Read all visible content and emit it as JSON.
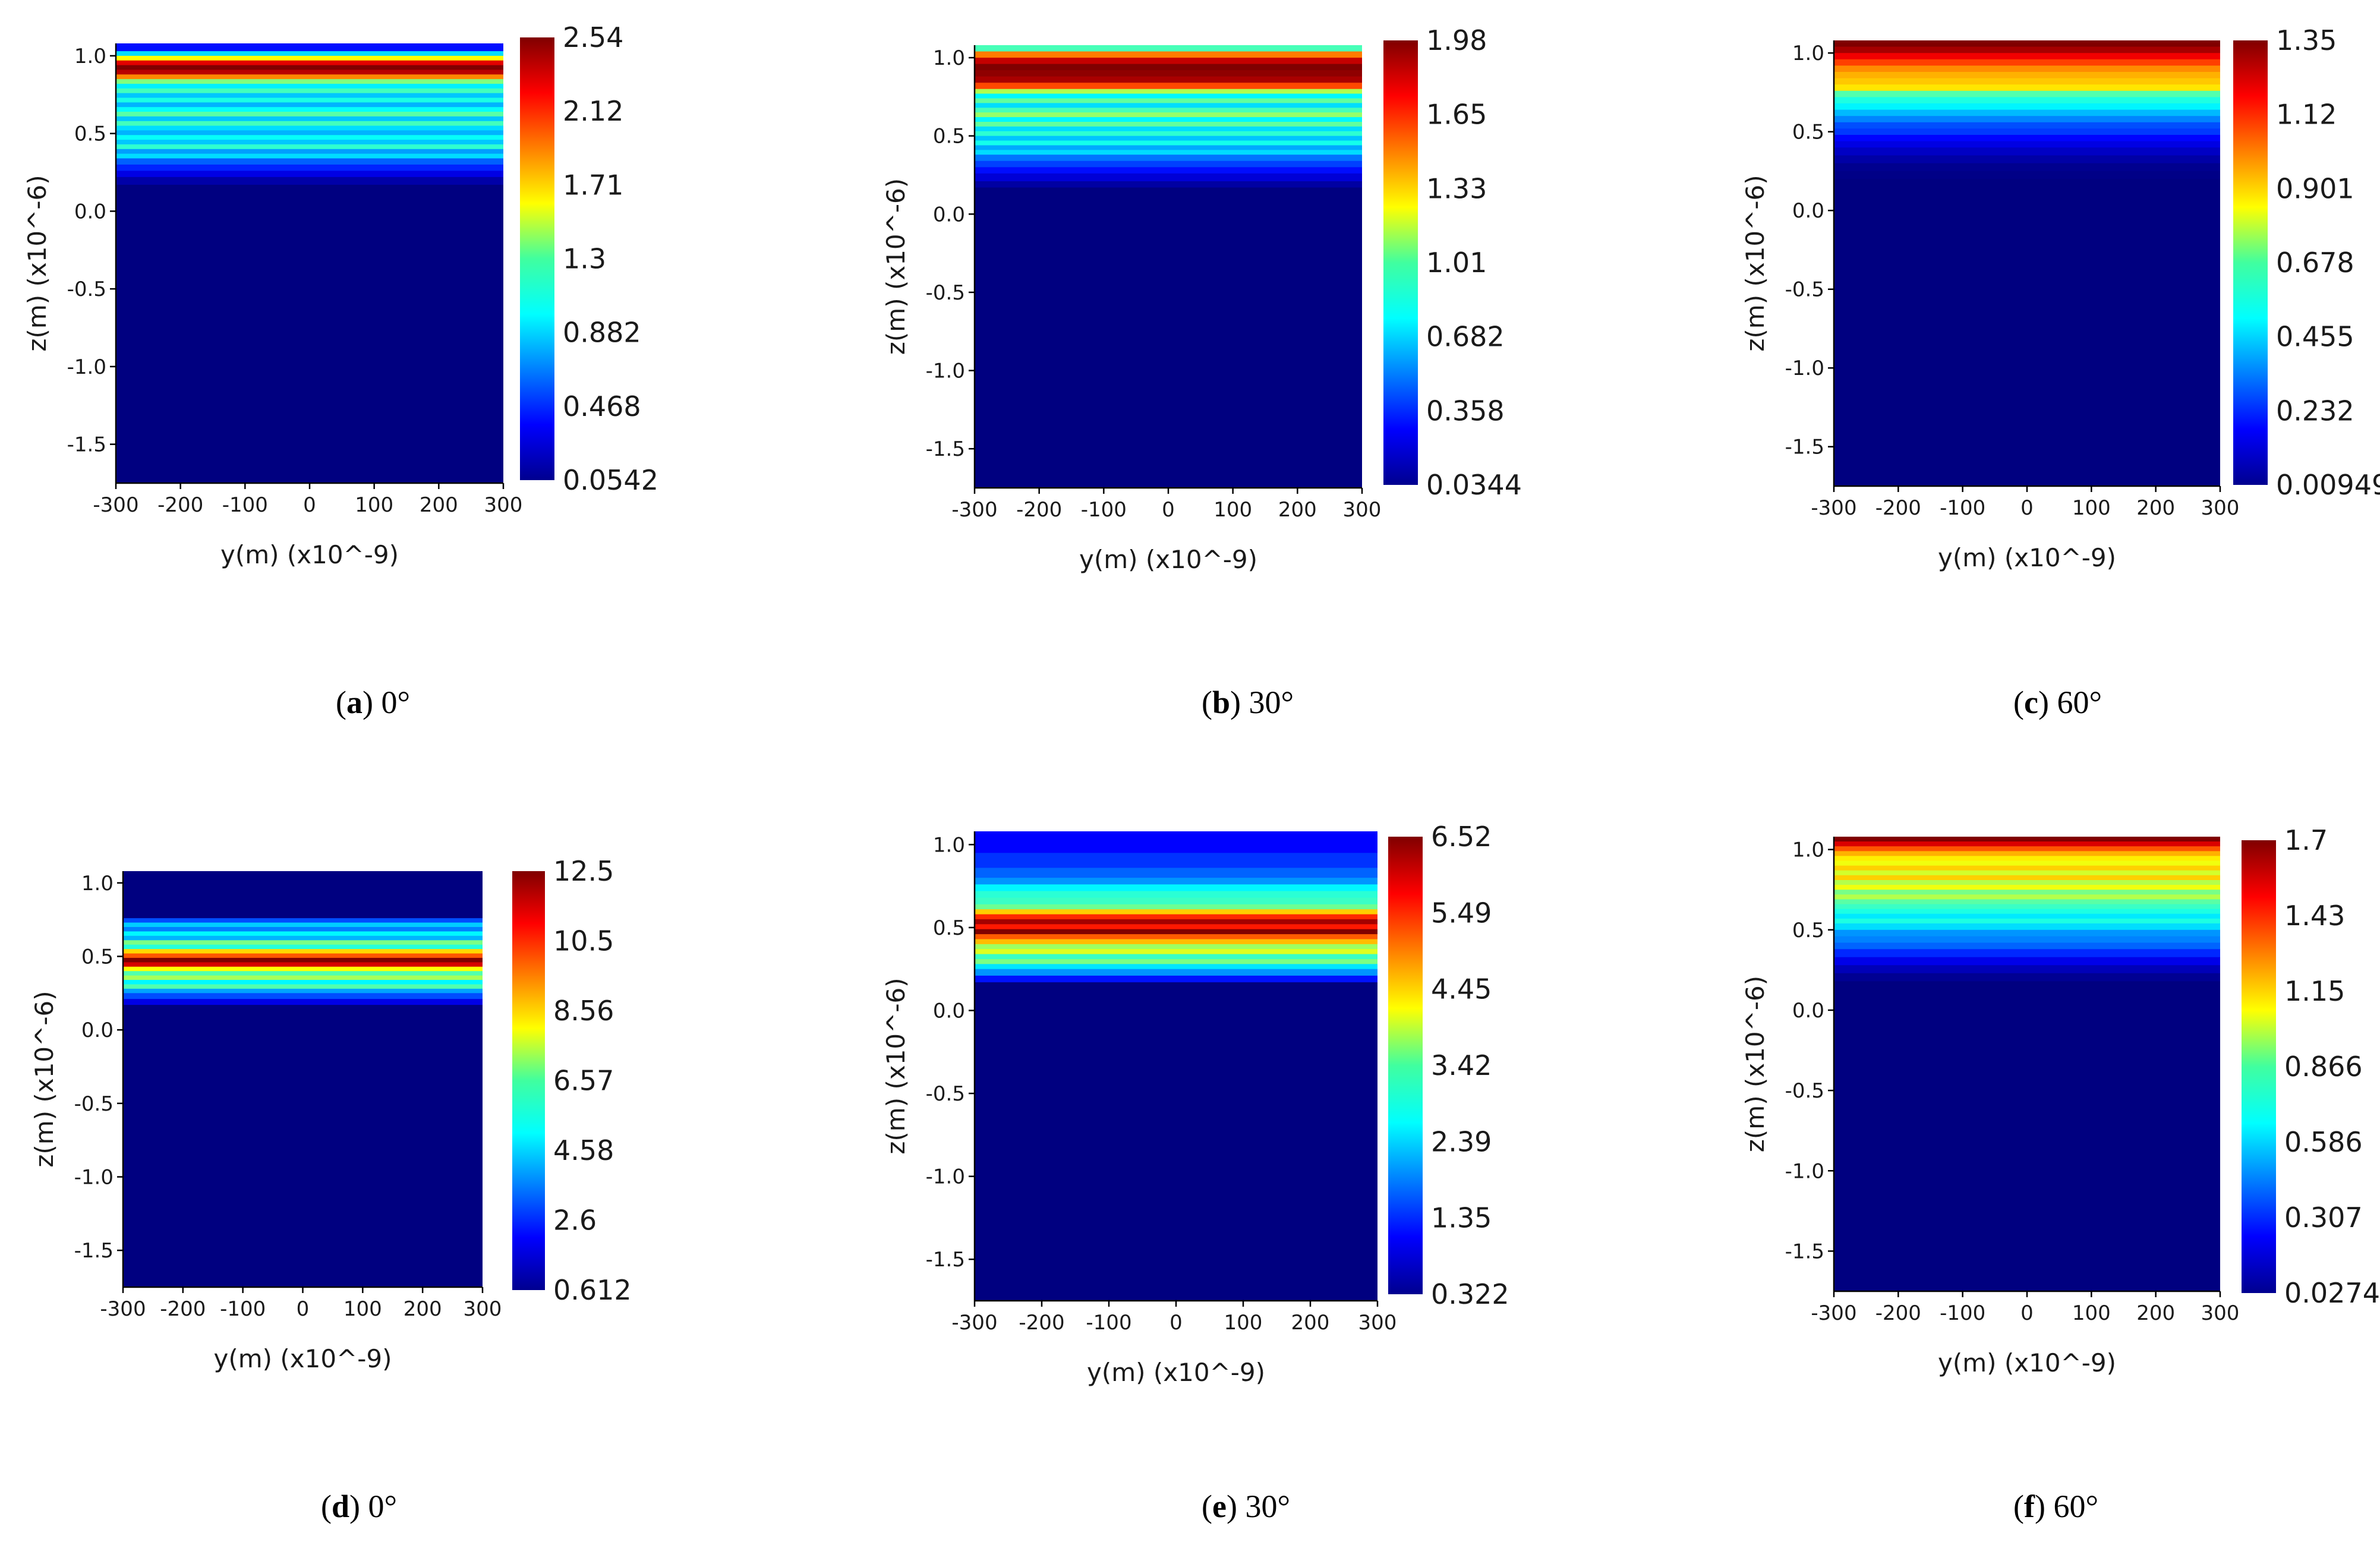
{
  "figure": {
    "description_caption_letters": [
      "a",
      "b",
      "c",
      "d",
      "e",
      "f"
    ]
  },
  "chart_data": [
    {
      "id": "a",
      "type": "heatmap",
      "caption_letter": "a",
      "caption_rest": " 0°",
      "xlabel": "y(m) (x10^-9)",
      "ylabel": "z(m) (x10^-6)",
      "xlim": [
        -300,
        300
      ],
      "ylim": [
        -1.75,
        1.08
      ],
      "xticks": [
        "-300",
        "-200",
        "-100",
        "0",
        "100",
        "200",
        "300"
      ],
      "yticks": [
        "1.0",
        "0.5",
        "0.0",
        "-0.5",
        "-1.0",
        "-1.5"
      ],
      "colorbar_min": 0.0542,
      "colorbar_max": 2.54,
      "colorbar_labels": [
        "2.54",
        "2.12",
        "1.71",
        "1.3",
        "0.882",
        "0.468",
        "0.0542"
      ],
      "z_profile": [
        [
          1.08,
          0.4
        ],
        [
          1.03,
          0.9
        ],
        [
          1.0,
          1.6
        ],
        [
          0.97,
          2.3
        ],
        [
          0.94,
          2.54
        ],
        [
          0.91,
          2.4
        ],
        [
          0.88,
          1.9
        ],
        [
          0.85,
          1.3
        ],
        [
          0.82,
          0.95
        ],
        [
          0.79,
          1.15
        ],
        [
          0.76,
          0.85
        ],
        [
          0.73,
          1.05
        ],
        [
          0.7,
          0.8
        ],
        [
          0.67,
          1.0
        ],
        [
          0.64,
          1.2
        ],
        [
          0.61,
          0.85
        ],
        [
          0.58,
          1.15
        ],
        [
          0.55,
          0.9
        ],
        [
          0.52,
          0.8
        ],
        [
          0.49,
          1.0
        ],
        [
          0.46,
          0.85
        ],
        [
          0.43,
          1.1
        ],
        [
          0.4,
          0.75
        ],
        [
          0.37,
          0.9
        ],
        [
          0.34,
          0.6
        ],
        [
          0.3,
          0.45
        ],
        [
          0.26,
          0.3
        ],
        [
          0.22,
          0.15
        ],
        [
          0.17,
          0.0542
        ],
        [
          -1.75,
          0.0542
        ]
      ]
    },
    {
      "id": "b",
      "type": "heatmap",
      "caption_letter": "b",
      "caption_rest": " 30°",
      "xlabel": "y(m) (x10^-9)",
      "ylabel": "z(m) (x10^-6)",
      "xlim": [
        -300,
        300
      ],
      "ylim": [
        -1.75,
        1.08
      ],
      "xticks": [
        "-300",
        "-200",
        "-100",
        "0",
        "100",
        "200",
        "300"
      ],
      "yticks": [
        "1.0",
        "0.5",
        "0.0",
        "-0.5",
        "-1.0",
        "-1.5"
      ],
      "colorbar_min": 0.0344,
      "colorbar_max": 1.98,
      "colorbar_labels": [
        "1.98",
        "1.65",
        "1.33",
        "1.01",
        "0.682",
        "0.358",
        "0.0344"
      ],
      "z_profile": [
        [
          1.08,
          0.9
        ],
        [
          1.04,
          1.5
        ],
        [
          1.0,
          1.85
        ],
        [
          0.96,
          1.98
        ],
        [
          0.92,
          1.95
        ],
        [
          0.88,
          1.9
        ],
        [
          0.84,
          1.6
        ],
        [
          0.8,
          1.1
        ],
        [
          0.77,
          0.75
        ],
        [
          0.74,
          0.95
        ],
        [
          0.71,
          0.7
        ],
        [
          0.68,
          0.9
        ],
        [
          0.65,
          1.05
        ],
        [
          0.62,
          0.75
        ],
        [
          0.59,
          0.95
        ],
        [
          0.56,
          0.7
        ],
        [
          0.53,
          0.85
        ],
        [
          0.5,
          0.65
        ],
        [
          0.47,
          0.8
        ],
        [
          0.44,
          0.6
        ],
        [
          0.41,
          0.7
        ],
        [
          0.38,
          0.5
        ],
        [
          0.34,
          0.4
        ],
        [
          0.3,
          0.3
        ],
        [
          0.26,
          0.2
        ],
        [
          0.21,
          0.1
        ],
        [
          0.17,
          0.0344
        ],
        [
          -1.75,
          0.0344
        ]
      ]
    },
    {
      "id": "c",
      "type": "heatmap",
      "caption_letter": "c",
      "caption_rest": " 60°",
      "xlabel": "y(m) (x10^-9)",
      "ylabel": "z(m) (x10^-6)",
      "xlim": [
        -300,
        300
      ],
      "ylim": [
        -1.75,
        1.08
      ],
      "xticks": [
        "-300",
        "-200",
        "-100",
        "0",
        "100",
        "200",
        "300"
      ],
      "yticks": [
        "1.0",
        "0.5",
        "0.0",
        "-0.5",
        "-1.0",
        "-1.5"
      ],
      "colorbar_min": 0.00949,
      "colorbar_max": 1.35,
      "colorbar_labels": [
        "1.35",
        "1.12",
        "0.901",
        "0.678",
        "0.455",
        "0.232",
        "0.00949"
      ],
      "z_profile": [
        [
          1.08,
          1.35
        ],
        [
          1.04,
          1.3
        ],
        [
          1.0,
          1.2
        ],
        [
          0.96,
          1.1
        ],
        [
          0.92,
          1.0
        ],
        [
          0.88,
          0.95
        ],
        [
          0.84,
          0.92
        ],
        [
          0.8,
          0.88
        ],
        [
          0.76,
          0.62
        ],
        [
          0.72,
          0.55
        ],
        [
          0.68,
          0.5
        ],
        [
          0.64,
          0.42
        ],
        [
          0.6,
          0.35
        ],
        [
          0.56,
          0.28
        ],
        [
          0.52,
          0.25
        ],
        [
          0.48,
          0.18
        ],
        [
          0.44,
          0.14
        ],
        [
          0.4,
          0.1
        ],
        [
          0.35,
          0.06
        ],
        [
          0.3,
          0.03
        ],
        [
          0.25,
          0.02
        ],
        [
          0.2,
          0.00949
        ],
        [
          -1.75,
          0.00949
        ]
      ]
    },
    {
      "id": "d",
      "type": "heatmap",
      "caption_letter": "d",
      "caption_rest": " 0°",
      "xlabel": "y(m) (x10^-9)",
      "ylabel": "z(m) (x10^-6)",
      "xlim": [
        -300,
        300
      ],
      "ylim": [
        -1.75,
        1.08
      ],
      "xticks": [
        "-300",
        "-200",
        "-100",
        "0",
        "100",
        "200",
        "300"
      ],
      "yticks": [
        "1.0",
        "0.5",
        "0.0",
        "-0.5",
        "-1.0",
        "-1.5"
      ],
      "colorbar_min": 0.612,
      "colorbar_max": 12.5,
      "colorbar_labels": [
        "12.5",
        "10.5",
        "8.56",
        "6.57",
        "4.58",
        "2.6",
        "0.612"
      ],
      "z_profile": [
        [
          1.08,
          0.612
        ],
        [
          0.8,
          0.612
        ],
        [
          0.76,
          3.0
        ],
        [
          0.73,
          4.5
        ],
        [
          0.7,
          3.6
        ],
        [
          0.67,
          5.0
        ],
        [
          0.64,
          4.2
        ],
        [
          0.61,
          6.5
        ],
        [
          0.58,
          5.5
        ],
        [
          0.55,
          8.5
        ],
        [
          0.52,
          10.0
        ],
        [
          0.49,
          12.5
        ],
        [
          0.46,
          11.5
        ],
        [
          0.43,
          8.0
        ],
        [
          0.4,
          6.0
        ],
        [
          0.37,
          7.0
        ],
        [
          0.34,
          5.0
        ],
        [
          0.31,
          6.0
        ],
        [
          0.28,
          4.0
        ],
        [
          0.25,
          3.0
        ],
        [
          0.21,
          1.8
        ],
        [
          0.17,
          0.612
        ],
        [
          -1.75,
          0.612
        ]
      ]
    },
    {
      "id": "e",
      "type": "heatmap",
      "caption_letter": "e",
      "caption_rest": " 30°",
      "xlabel": "y(m) (x10^-9)",
      "ylabel": "z(m) (x10^-6)",
      "xlim": [
        -300,
        300
      ],
      "ylim": [
        -1.75,
        1.08
      ],
      "xticks": [
        "-300",
        "-200",
        "-100",
        "0",
        "100",
        "200",
        "300"
      ],
      "yticks": [
        "1.0",
        "0.5",
        "0.0",
        "-0.5",
        "-1.0",
        "-1.5"
      ],
      "colorbar_min": 0.322,
      "colorbar_max": 6.52,
      "colorbar_labels": [
        "6.52",
        "5.49",
        "4.45",
        "3.42",
        "2.39",
        "1.35",
        "0.322"
      ],
      "z_profile": [
        [
          1.08,
          1.1
        ],
        [
          0.95,
          1.4
        ],
        [
          0.86,
          1.7
        ],
        [
          0.8,
          2.0
        ],
        [
          0.76,
          2.6
        ],
        [
          0.72,
          2.9
        ],
        [
          0.68,
          3.0
        ],
        [
          0.64,
          3.3
        ],
        [
          0.61,
          4.5
        ],
        [
          0.58,
          5.5
        ],
        [
          0.55,
          6.3
        ],
        [
          0.52,
          5.6
        ],
        [
          0.49,
          6.52
        ],
        [
          0.46,
          5.2
        ],
        [
          0.43,
          4.6
        ],
        [
          0.4,
          3.6
        ],
        [
          0.37,
          4.0
        ],
        [
          0.34,
          3.0
        ],
        [
          0.31,
          3.4
        ],
        [
          0.28,
          2.5
        ],
        [
          0.25,
          2.0
        ],
        [
          0.21,
          1.2
        ],
        [
          0.17,
          0.322
        ],
        [
          -1.75,
          0.322
        ]
      ]
    },
    {
      "id": "f",
      "type": "heatmap",
      "caption_letter": "f",
      "caption_rest": " 60°",
      "xlabel": "y(m) (x10^-9)",
      "ylabel": "z(m) (x10^-6)",
      "xlim": [
        -300,
        300
      ],
      "ylim": [
        -1.75,
        1.08
      ],
      "xticks": [
        "-300",
        "-200",
        "-100",
        "0",
        "100",
        "200",
        "300"
      ],
      "yticks": [
        "1.0",
        "0.5",
        "0.0",
        "-0.5",
        "-1.0",
        "-1.5"
      ],
      "colorbar_min": 0.0274,
      "colorbar_max": 1.7,
      "colorbar_labels": [
        "1.7",
        "1.43",
        "1.15",
        "0.866",
        "0.586",
        "0.307",
        "0.0274"
      ],
      "z_profile": [
        [
          1.08,
          1.7
        ],
        [
          1.05,
          1.55
        ],
        [
          1.02,
          1.35
        ],
        [
          0.99,
          1.2
        ],
        [
          0.96,
          1.1
        ],
        [
          0.93,
          1.05
        ],
        [
          0.9,
          1.15
        ],
        [
          0.87,
          1.0
        ],
        [
          0.84,
          1.15
        ],
        [
          0.81,
          0.95
        ],
        [
          0.78,
          1.05
        ],
        [
          0.75,
          0.85
        ],
        [
          0.72,
          0.95
        ],
        [
          0.69,
          0.8
        ],
        [
          0.66,
          0.75
        ],
        [
          0.63,
          0.7
        ],
        [
          0.6,
          0.62
        ],
        [
          0.57,
          0.7
        ],
        [
          0.54,
          0.6
        ],
        [
          0.5,
          0.48
        ],
        [
          0.46,
          0.45
        ],
        [
          0.42,
          0.4
        ],
        [
          0.38,
          0.3
        ],
        [
          0.33,
          0.2
        ],
        [
          0.28,
          0.12
        ],
        [
          0.23,
          0.06
        ],
        [
          0.18,
          0.0274
        ],
        [
          -1.75,
          0.0274
        ]
      ]
    }
  ]
}
